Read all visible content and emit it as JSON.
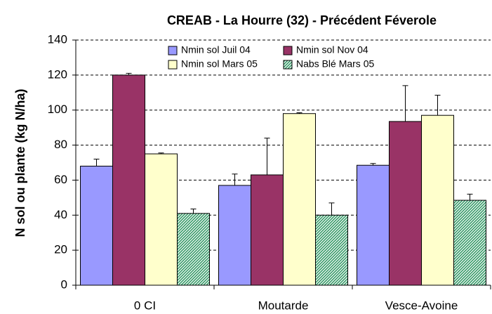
{
  "chart_data": {
    "type": "bar",
    "title": "CREAB - La Hourre (32) - Précédent Féverole",
    "y_label": "N sol ou plante (kg N/ha)",
    "categories": [
      "0 CI",
      "Moutarde",
      "Vesce-Avoine"
    ],
    "series": [
      {
        "name": "Nmin sol Juil 04",
        "color": "#9999ff",
        "values": [
          68,
          57,
          68.5
        ],
        "errors": [
          4,
          6.5,
          1
        ]
      },
      {
        "name": "Nmin sol Nov 04",
        "color": "#993366",
        "values": [
          120,
          63,
          93.5
        ],
        "errors": [
          1,
          21,
          20.5
        ]
      },
      {
        "name": "Nmin sol Mars 05",
        "color": "#ffffcc",
        "values": [
          75,
          98,
          97
        ],
        "errors": [
          0.5,
          0.5,
          11.5
        ]
      },
      {
        "name": "Nabs Blé Mars 05",
        "color": "#339966",
        "values": [
          41,
          40,
          48.5
        ],
        "errors": [
          2.5,
          7,
          3.5
        ]
      }
    ],
    "ylim": [
      0,
      140
    ],
    "yticks": [
      0,
      20,
      40,
      60,
      80,
      100,
      120,
      140
    ],
    "grid": true
  }
}
